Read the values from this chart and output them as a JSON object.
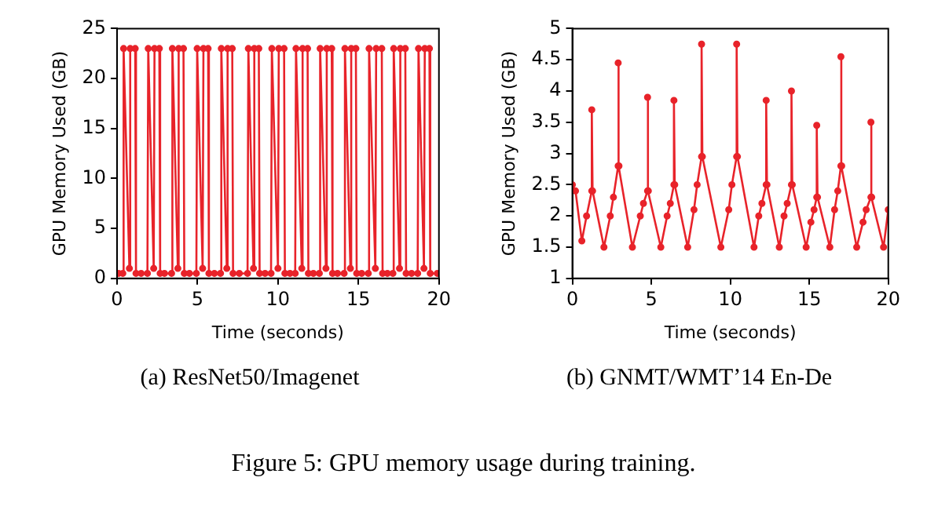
{
  "chart_data": [
    {
      "type": "line",
      "xlabel": "Time (seconds)",
      "ylabel": "GPU Memory Used (GB)",
      "xlim": [
        0,
        20
      ],
      "xticks": [
        0,
        5,
        10,
        15,
        20
      ],
      "ylim": [
        0,
        25
      ],
      "yticks": [
        0,
        5,
        10,
        15,
        20,
        25
      ],
      "grid": false,
      "legend": false,
      "marker": "circle",
      "line_style": "solid",
      "annotations": [
        "(a)  ResNet50/Imagenet",
        "Figure 5: GPU memory usage during training."
      ],
      "series": [
        {
          "color": "#e8232a",
          "x": [
            0.1,
            0.36,
            0.41,
            0.77,
            0.82,
            1.13,
            1.18,
            1.5,
            1.89,
            1.94,
            2.28,
            2.33,
            2.63,
            2.68,
            2.95,
            3.39,
            3.44,
            3.78,
            3.83,
            4.13,
            4.18,
            4.5,
            4.93,
            4.98,
            5.32,
            5.37,
            5.66,
            5.71,
            6.05,
            6.43,
            6.48,
            6.82,
            6.87,
            7.16,
            7.21,
            7.6,
            8.11,
            8.16,
            8.48,
            8.53,
            8.81,
            8.86,
            9.2,
            9.57,
            9.62,
            10.0,
            10.05,
            10.38,
            10.43,
            10.75,
            11.07,
            11.12,
            11.48,
            11.53,
            11.84,
            11.89,
            12.2,
            12.57,
            12.62,
            12.98,
            13.03,
            13.34,
            13.39,
            13.7,
            14.11,
            14.16,
            14.5,
            14.55,
            14.84,
            14.89,
            15.2,
            15.61,
            15.66,
            16.05,
            16.1,
            16.45,
            16.5,
            16.8,
            17.14,
            17.19,
            17.55,
            17.6,
            17.91,
            17.96,
            18.3,
            18.68,
            18.73,
            19.07,
            19.12,
            19.41,
            19.46,
            19.9
          ],
          "values": [
            0.5,
            0.5,
            23,
            1,
            23,
            23,
            0.5,
            0.5,
            0.5,
            23,
            1,
            23,
            23,
            0.5,
            0.5,
            0.5,
            23,
            1,
            23,
            23,
            0.5,
            0.5,
            0.5,
            23,
            1,
            23,
            23,
            0.5,
            0.5,
            0.5,
            23,
            1,
            23,
            23,
            0.5,
            0.5,
            0.5,
            23,
            1,
            23,
            23,
            0.5,
            0.5,
            0.5,
            23,
            1,
            23,
            23,
            0.5,
            0.5,
            0.5,
            23,
            1,
            23,
            23,
            0.5,
            0.5,
            0.5,
            23,
            1,
            23,
            23,
            0.5,
            0.5,
            0.5,
            23,
            1,
            23,
            23,
            0.5,
            0.5,
            0.5,
            23,
            1,
            23,
            23,
            0.5,
            0.5,
            0.5,
            23,
            1,
            23,
            23,
            0.5,
            0.5,
            0.5,
            23,
            1,
            23,
            23,
            0.5,
            0.5
          ]
        }
      ]
    },
    {
      "type": "line",
      "xlabel": "Time (seconds)",
      "ylabel": "GPU Memory Used (GB)",
      "xlim": [
        0,
        20
      ],
      "xticks": [
        0,
        5,
        10,
        15,
        20
      ],
      "ylim": [
        1,
        5
      ],
      "yticks": [
        1,
        1.5,
        2,
        2.5,
        3,
        3.5,
        4,
        4.5,
        5
      ],
      "grid": false,
      "legend": false,
      "marker": "circle",
      "line_style": "solid",
      "annotations": [
        "(b)  GNMT/WMT’14 En-De"
      ],
      "series": [
        {
          "color": "#e8232a",
          "x": [
            0,
            0.2,
            0.6,
            0.9,
            1.23,
            1.23,
            1.28,
            2.0,
            2.4,
            2.6,
            2.9,
            2.9,
            2.95,
            3.8,
            4.3,
            4.5,
            4.76,
            4.76,
            4.81,
            5.6,
            6.0,
            6.2,
            6.43,
            6.43,
            6.48,
            7.3,
            7.7,
            7.9,
            8.18,
            8.18,
            8.23,
            9.4,
            9.9,
            10.1,
            10.4,
            10.4,
            10.45,
            11.5,
            11.8,
            12.0,
            12.27,
            12.27,
            12.32,
            13.1,
            13.4,
            13.6,
            13.87,
            13.87,
            13.92,
            14.8,
            15.1,
            15.3,
            15.47,
            15.47,
            15.52,
            16.3,
            16.6,
            16.8,
            17.0,
            17.0,
            17.05,
            18.0,
            18.4,
            18.6,
            18.9,
            18.9,
            18.95,
            19.7,
            20
          ],
          "values": [
            2.5,
            2.4,
            1.6,
            2.0,
            2.4,
            3.7,
            2.4,
            1.5,
            2.0,
            2.3,
            2.8,
            4.45,
            2.8,
            1.5,
            2.0,
            2.2,
            2.4,
            3.9,
            2.4,
            1.5,
            2.0,
            2.2,
            2.5,
            3.85,
            2.5,
            1.5,
            2.1,
            2.5,
            2.95,
            4.75,
            2.95,
            1.5,
            2.1,
            2.5,
            2.95,
            4.75,
            2.95,
            1.5,
            2.0,
            2.2,
            2.5,
            3.85,
            2.5,
            1.5,
            2.0,
            2.2,
            2.5,
            4.0,
            2.5,
            1.5,
            1.9,
            2.1,
            2.3,
            3.45,
            2.3,
            1.5,
            2.1,
            2.4,
            2.8,
            4.55,
            2.8,
            1.5,
            1.9,
            2.1,
            2.3,
            3.5,
            2.3,
            1.5,
            2.1
          ]
        }
      ]
    }
  ]
}
